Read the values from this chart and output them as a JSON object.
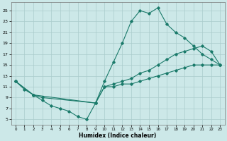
{
  "xlabel": "Humidex (Indice chaleur)",
  "background_color": "#cce8e8",
  "grid_color": "#aacccc",
  "line_color": "#1a7a6a",
  "xlim": [
    -0.5,
    23.5
  ],
  "ylim": [
    4,
    26.5
  ],
  "yticks": [
    5,
    7,
    9,
    11,
    13,
    15,
    17,
    19,
    21,
    23,
    25
  ],
  "xticks": [
    0,
    1,
    2,
    3,
    4,
    5,
    6,
    7,
    8,
    9,
    10,
    11,
    12,
    13,
    14,
    15,
    16,
    17,
    18,
    19,
    20,
    21,
    22,
    23
  ],
  "line1_x": [
    0,
    1,
    2,
    3,
    4,
    5,
    6,
    7,
    8,
    9,
    10,
    11,
    12,
    13,
    14,
    15,
    16,
    17,
    18,
    19,
    20,
    21,
    22,
    23
  ],
  "line1_y": [
    12,
    10.5,
    9.5,
    8.5,
    7.5,
    7,
    6.5,
    5.5,
    5,
    8,
    12,
    15.5,
    19,
    23,
    25,
    24.5,
    25.5,
    22.5,
    21,
    20,
    18.5,
    17,
    16,
    15
  ],
  "line2_x": [
    0,
    2,
    3,
    9,
    10,
    11,
    12,
    13,
    14,
    15,
    16,
    17,
    18,
    19,
    20,
    21,
    22,
    23
  ],
  "line2_y": [
    12,
    9.5,
    9,
    8,
    11,
    11.5,
    12,
    12.5,
    13.5,
    14,
    15,
    16,
    17,
    17.5,
    18,
    18.5,
    17.5,
    15
  ],
  "line3_x": [
    0,
    2,
    9,
    10,
    11,
    12,
    13,
    14,
    15,
    16,
    17,
    18,
    19,
    20,
    21,
    22,
    23
  ],
  "line3_y": [
    12,
    9.5,
    8,
    11,
    11,
    11.5,
    11.5,
    12,
    12.5,
    13,
    13.5,
    14,
    14.5,
    15,
    15,
    15,
    15
  ]
}
